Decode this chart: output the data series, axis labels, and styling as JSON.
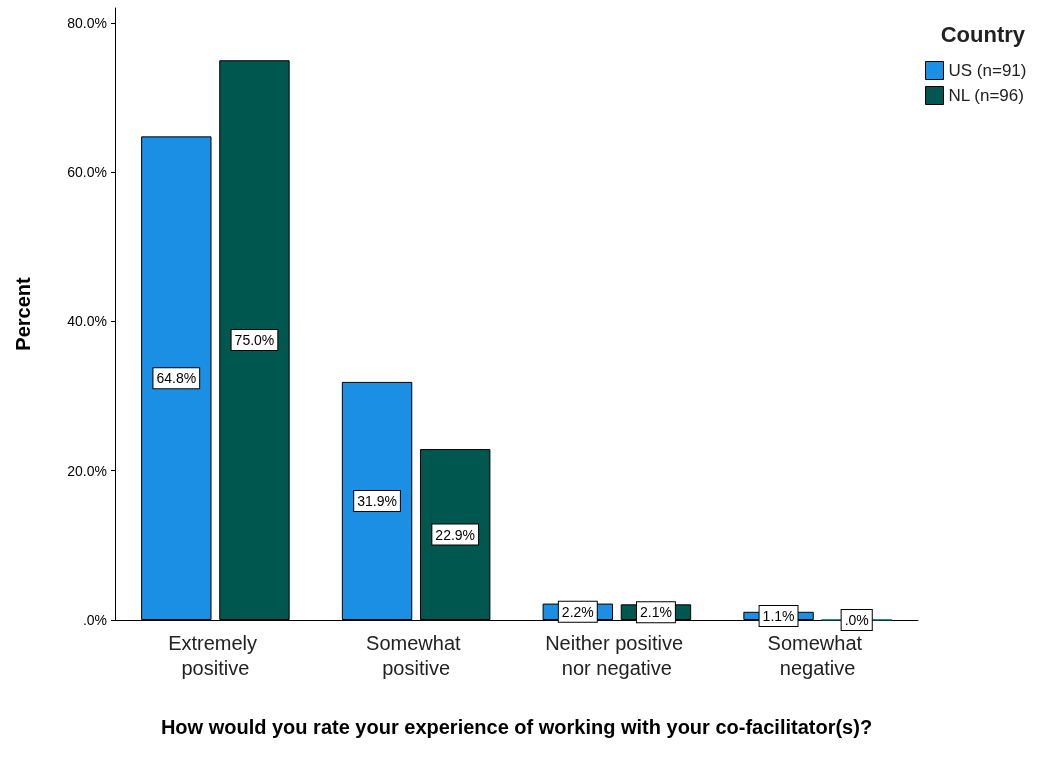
{
  "chart_data": {
    "type": "bar",
    "xlabel": "How would you rate your experience of working with your co-facilitator(s)?",
    "ylabel": "Percent",
    "legend_title": "Country",
    "categories": [
      "Extremely positive",
      "Somewhat positive",
      "Neither positive nor negative",
      "Somewhat negative"
    ],
    "series": [
      {
        "name": "US (n=91)",
        "color": "#1a8fe3",
        "values": [
          64.8,
          31.9,
          2.2,
          1.1
        ],
        "value_labels": [
          "64.8%",
          "31.9%",
          "2.2%",
          "1.1%"
        ]
      },
      {
        "name": "NL (n=96)",
        "color": "#00574f",
        "values": [
          75.0,
          22.9,
          2.1,
          0.0
        ],
        "value_labels": [
          "75.0%",
          "22.9%",
          "2.1%",
          ".0%"
        ]
      }
    ],
    "ylim": [
      0,
      82
    ],
    "yticks": [
      {
        "value": 0,
        "label": ".0%"
      },
      {
        "value": 20,
        "label": "20.0%"
      },
      {
        "value": 40,
        "label": "40.0%"
      },
      {
        "value": 60,
        "label": "60.0%"
      },
      {
        "value": 80,
        "label": "80.0%"
      }
    ],
    "grid": false,
    "legend": "top right"
  }
}
